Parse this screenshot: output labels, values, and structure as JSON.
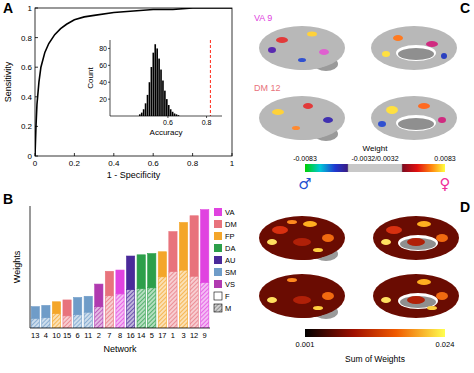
{
  "chart_data": [
    {
      "type": "line",
      "panel": "A",
      "xlabel": "1 - Specificity",
      "ylabel": "Sensitivity",
      "x": [
        0,
        0.005,
        0.01,
        0.02,
        0.03,
        0.05,
        0.07,
        0.1,
        0.13,
        0.16,
        0.2,
        0.25,
        0.3,
        0.4,
        0.5,
        0.6,
        0.7,
        0.8,
        0.9,
        1
      ],
      "values": [
        0,
        0.2,
        0.35,
        0.5,
        0.6,
        0.7,
        0.76,
        0.82,
        0.86,
        0.89,
        0.92,
        0.94,
        0.95,
        0.97,
        0.98,
        0.99,
        0.99,
        1,
        1,
        1
      ],
      "color": "#000000",
      "xlim": [
        0,
        1
      ],
      "ylim": [
        0,
        1
      ],
      "xticks": [
        0,
        0.2,
        0.4,
        0.6,
        0.8,
        1
      ],
      "yticks": [
        0,
        0.2,
        0.4,
        0.6,
        0.8,
        1
      ]
    },
    {
      "type": "histogram",
      "xlabel": "Accuracy",
      "ylabel": "Count",
      "bins": [
        0.45,
        0.46,
        0.47,
        0.48,
        0.49,
        0.5,
        0.51,
        0.52,
        0.53,
        0.54,
        0.55,
        0.56,
        0.57,
        0.58,
        0.59,
        0.6,
        0.61,
        0.62,
        0.63,
        0.64,
        0.65,
        0.66
      ],
      "values": [
        2,
        4,
        8,
        15,
        25,
        40,
        58,
        75,
        85,
        80,
        68,
        55,
        42,
        30,
        20,
        13,
        8,
        5,
        3,
        2,
        1
      ],
      "color": "#000000",
      "xlim": [
        0.3,
        0.88
      ],
      "ylim": [
        0,
        90
      ],
      "xticks": [
        0.6,
        0.8
      ],
      "yticks": [
        20,
        40,
        60,
        80
      ],
      "reference_line": {
        "x": 0.82,
        "color": "#ff2a1a",
        "line_style": "dashed"
      }
    },
    {
      "type": "bar",
      "panel": "B",
      "stacked": true,
      "xlabel": "Network",
      "ylabel": "Weights",
      "categories": [
        "13",
        "4",
        "10",
        "15",
        "6",
        "11",
        "2",
        "7",
        "8",
        "16",
        "14",
        "5",
        "17",
        "1",
        "3",
        "12",
        "9"
      ],
      "series": [
        {
          "name": "M",
          "line_style": "hatched",
          "values": [
            1.6,
            1.7,
            2.4,
            2.0,
            2.2,
            2.6,
            3.5,
            5.3,
            5.6,
            6.3,
            6.5,
            6.6,
            8.4,
            9.3,
            9.5,
            8.5,
            7.5
          ]
        },
        {
          "name": "F",
          "line_style": "solid",
          "values": [
            1.9,
            2.0,
            1.9,
            2.6,
            2.8,
            2.6,
            3.7,
            4.0,
            3.9,
            5.5,
            5.5,
            5.6,
            4.1,
            6.5,
            7.8,
            9.9,
            11.9
          ]
        }
      ],
      "colors": [
        "#6f9cc8",
        "#6f9cc8",
        "#f4a62a",
        "#e8737c",
        "#6f9cc8",
        "#6f9cc8",
        "#b03ab0",
        "#e8737c",
        "#e043e0",
        "#4a2a9a",
        "#2c9f4a",
        "#2c9f4a",
        "#f4a62a",
        "#e8737c",
        "#f4a62a",
        "#e8737c",
        "#e043e0"
      ],
      "networks": [
        {
          "name": "VA",
          "color": "#e043e0"
        },
        {
          "name": "DM",
          "color": "#e8737c"
        },
        {
          "name": "FP",
          "color": "#f4a62a"
        },
        {
          "name": "DA",
          "color": "#2c9f4a"
        },
        {
          "name": "AU",
          "color": "#4a2a9a"
        },
        {
          "name": "SM",
          "color": "#6f9cc8"
        },
        {
          "name": "VS",
          "color": "#b03ab0"
        }
      ],
      "ylim": [
        0,
        20
      ],
      "tick_labels": "x"
    },
    {
      "type": "image",
      "panel": "C",
      "maps": [
        {
          "label": "VA 9",
          "color": "#e043e0"
        },
        {
          "label": "DM 12",
          "color": "#e8737c"
        }
      ],
      "colorbar": {
        "label": "Weight",
        "range": [
          -0.0083,
          0.0083
        ],
        "ticks": [
          -0.0083,
          0.0083
        ],
        "threshold": [
          -0.0032,
          0.0032
        ],
        "threshold_label": "-0.0032/0.0032",
        "end_labels": [
          {
            "label": "♂",
            "color": "#1f4fd0"
          },
          {
            "label": "♀",
            "color": "#f0309a"
          }
        ]
      }
    },
    {
      "type": "image",
      "panel": "D",
      "colorbar": {
        "label": "Sum of Weights",
        "range": [
          0.001,
          0.024
        ],
        "ticks": [
          0.001,
          0.024
        ]
      }
    }
  ]
}
